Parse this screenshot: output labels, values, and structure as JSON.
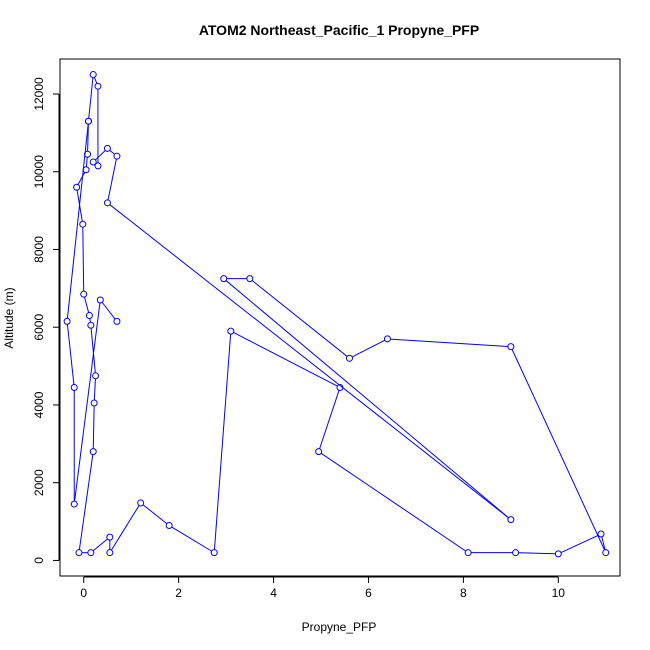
{
  "chart_data": {
    "type": "line",
    "title": "ATOM2 Northeast_Pacific_1 Propyne_PFP",
    "xlabel": "Propyne_PFP",
    "ylabel": "Altitude (m)",
    "xlim": [
      -0.5,
      11.3
    ],
    "ylim": [
      -400,
      12900
    ],
    "xticks": [
      0,
      2,
      4,
      6,
      8,
      10
    ],
    "yticks": [
      0,
      2000,
      4000,
      6000,
      8000,
      10000,
      12000
    ],
    "xtick_labels": [
      "0",
      "2",
      "4",
      "6",
      "8",
      "10"
    ],
    "ytick_labels": [
      "0",
      "2000",
      "4000",
      "6000",
      "8000",
      "10000",
      "12000"
    ],
    "grid": false,
    "series_color": "#0000ff",
    "series": [
      {
        "points": [
          [
            0.1,
            11300
          ],
          [
            0.08,
            10450
          ],
          [
            0.05,
            10050
          ],
          [
            -0.15,
            9600
          ],
          [
            -0.02,
            8650
          ],
          [
            0.0,
            6850
          ],
          [
            0.12,
            6300
          ],
          [
            0.15,
            6050
          ],
          [
            0.25,
            4750
          ],
          [
            0.22,
            4050
          ],
          [
            0.2,
            2800
          ],
          [
            -0.1,
            200
          ],
          [
            0.15,
            200
          ],
          [
            0.55,
            600
          ],
          [
            0.55,
            200
          ],
          [
            1.2,
            1480
          ],
          [
            1.8,
            900
          ],
          [
            2.75,
            200
          ],
          [
            3.1,
            5900
          ],
          [
            5.4,
            4450
          ],
          [
            4.95,
            2800
          ],
          [
            8.1,
            200
          ],
          [
            9.1,
            200
          ],
          [
            10.0,
            170
          ],
          [
            10.9,
            680
          ],
          [
            11.0,
            200
          ],
          [
            9.0,
            5500
          ],
          [
            6.4,
            5700
          ],
          [
            5.6,
            5200
          ],
          [
            3.5,
            7250
          ],
          [
            2.95,
            7250
          ],
          [
            9.0,
            1050
          ],
          [
            0.5,
            9200
          ],
          [
            0.7,
            10400
          ],
          [
            0.5,
            10600
          ],
          [
            0.2,
            10250
          ],
          [
            0.3,
            10150
          ],
          [
            0.3,
            12200
          ],
          [
            0.2,
            12500
          ],
          [
            0.1,
            11300
          ],
          [
            -0.35,
            6150
          ],
          [
            -0.2,
            4450
          ],
          [
            -0.2,
            1450
          ],
          [
            0.35,
            6700
          ],
          [
            0.7,
            6150
          ]
        ]
      }
    ]
  }
}
